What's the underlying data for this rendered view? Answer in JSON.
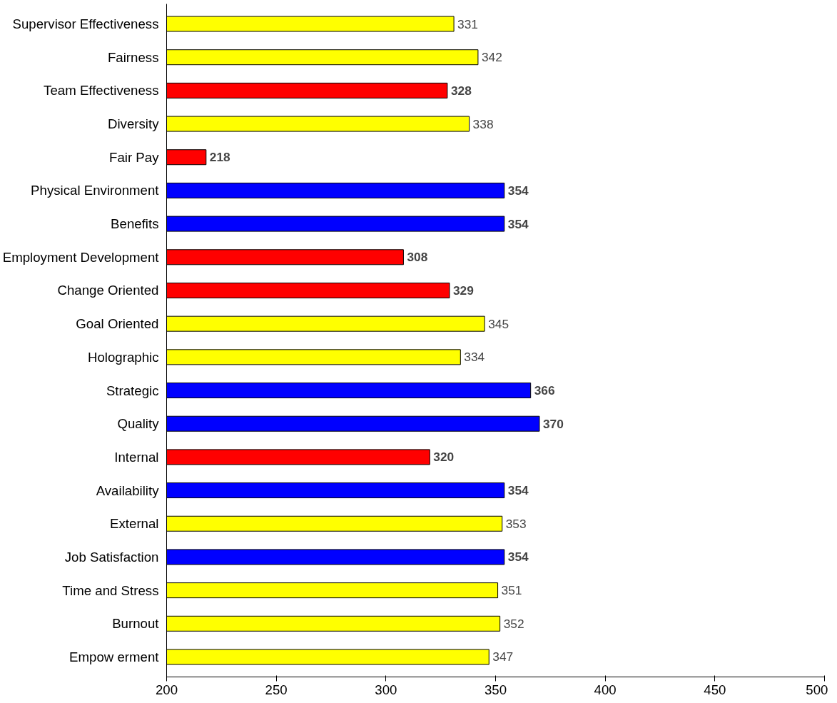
{
  "chart_data": {
    "type": "bar",
    "orientation": "horizontal",
    "categories": [
      "Supervisor Effectiveness",
      "Fairness",
      "Team Effectiveness",
      "Diversity",
      "Fair Pay",
      "Physical Environment",
      "Benefits",
      "Employment Development",
      "Change Oriented",
      "Goal Oriented",
      "Holographic",
      "Strategic",
      "Quality",
      "Internal",
      "Availability",
      "External",
      "Job Satisfaction",
      "Time and Stress",
      "Burnout",
      "Empow erment"
    ],
    "values": [
      331,
      342,
      328,
      338,
      218,
      354,
      354,
      308,
      329,
      345,
      334,
      366,
      370,
      320,
      354,
      353,
      354,
      351,
      352,
      347
    ],
    "colors": [
      "#ffff00",
      "#ffff00",
      "#ff0000",
      "#ffff00",
      "#ff0000",
      "#0000ff",
      "#0000ff",
      "#ff0000",
      "#ff0000",
      "#ffff00",
      "#ffff00",
      "#0000ff",
      "#0000ff",
      "#ff0000",
      "#0000ff",
      "#ffff00",
      "#0000ff",
      "#ffff00",
      "#ffff00",
      "#ffff00"
    ],
    "xlim": [
      200,
      500
    ],
    "xticks": [
      200,
      250,
      300,
      350,
      400,
      450,
      500
    ],
    "data_labels": true
  }
}
